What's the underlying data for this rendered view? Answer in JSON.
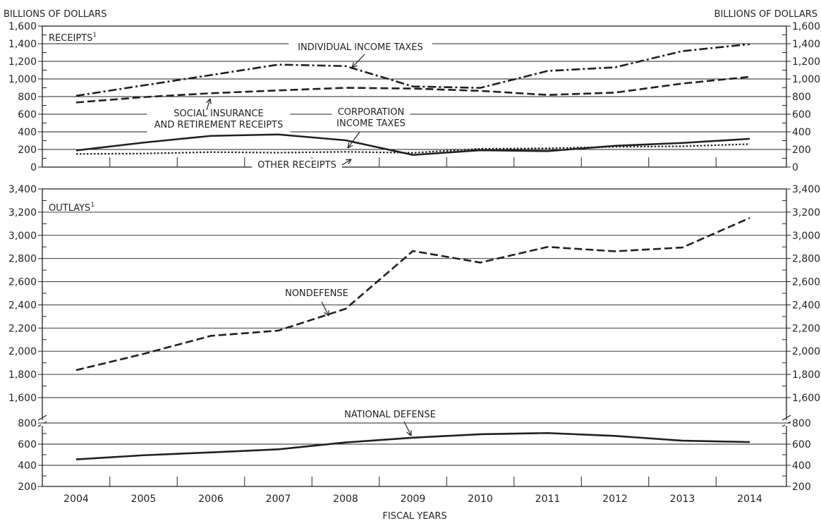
{
  "header": {
    "left_units": "BILLIONS OF DOLLARS",
    "right_units": "BILLIONS OF DOLLARS"
  },
  "xlabel": "FISCAL YEARS",
  "colors": {
    "ink": "#231f20",
    "background": "#ffffff"
  },
  "chart_data": [
    {
      "type": "line",
      "title": "RECEIPTS",
      "title_sup": "1",
      "x": [
        2004,
        2005,
        2006,
        2007,
        2008,
        2009,
        2010,
        2011,
        2012,
        2013,
        2014
      ],
      "ylim": [
        0,
        1600
      ],
      "yticks": [
        0,
        200,
        400,
        600,
        800,
        1000,
        1200,
        1400,
        1600
      ],
      "ytick_labels": [
        "0",
        "200",
        "400",
        "600",
        "800",
        "1,000",
        "1,200",
        "1,400",
        "1,600"
      ],
      "grid": true,
      "series": [
        {
          "name": "INDIVIDUAL INCOME TAXES",
          "style": "dashdot",
          "values": [
            809,
            927,
            1044,
            1163,
            1146,
            915,
            899,
            1091,
            1132,
            1316,
            1395
          ]
        },
        {
          "name": "SOCIAL INSURANCE AND RETIREMENT RECEIPTS",
          "style": "dashed",
          "values": [
            733,
            794,
            838,
            870,
            900,
            891,
            865,
            819,
            845,
            948,
            1024
          ]
        },
        {
          "name": "CORPORATION INCOME TAXES",
          "style": "solid",
          "values": [
            189,
            278,
            354,
            370,
            304,
            138,
            191,
            181,
            242,
            274,
            321
          ]
        },
        {
          "name": "OTHER RECEIPTS",
          "style": "dotted",
          "values": [
            149,
            154,
            170,
            164,
            173,
            162,
            208,
            213,
            230,
            236,
            261
          ]
        }
      ],
      "annotations": [
        {
          "lines": [
            "INDIVIDUAL INCOME TAXES"
          ]
        },
        {
          "lines": [
            "SOCIAL INSURANCE",
            "AND RETIREMENT RECEIPTS"
          ]
        },
        {
          "lines": [
            "CORPORATION",
            "INCOME TAXES"
          ]
        },
        {
          "lines": [
            "OTHER RECEIPTS"
          ]
        }
      ]
    },
    {
      "type": "line",
      "title": "OUTLAYS",
      "title_sup": "1",
      "x": [
        2004,
        2005,
        2006,
        2007,
        2008,
        2009,
        2010,
        2011,
        2012,
        2013,
        2014
      ],
      "broken_axis": true,
      "ylim_upper": [
        1600,
        3400
      ],
      "ylim_lower": [
        200,
        800
      ],
      "yticks": [
        200,
        400,
        600,
        800,
        1600,
        1800,
        2000,
        2200,
        2400,
        2600,
        2800,
        3000,
        3200,
        3400
      ],
      "ytick_labels": [
        "200",
        "400",
        "600",
        "800",
        "1,600",
        "1,800",
        "2,000",
        "2,200",
        "2,400",
        "2,600",
        "2,800",
        "3,000",
        "3,200",
        "3,400"
      ],
      "grid": true,
      "series": [
        {
          "name": "NONDEFENSE",
          "style": "dashed",
          "values": [
            1837,
            1977,
            2133,
            2178,
            2366,
            2865,
            2765,
            2900,
            2862,
            2895,
            3150
          ]
        },
        {
          "name": "NATIONAL DEFENSE",
          "style": "solid",
          "values": [
            456,
            495,
            522,
            551,
            616,
            661,
            694,
            705,
            678,
            633,
            620
          ]
        }
      ],
      "annotations": [
        {
          "lines": [
            "NONDEFENSE"
          ]
        },
        {
          "lines": [
            "NATIONAL DEFENSE"
          ]
        }
      ]
    }
  ]
}
